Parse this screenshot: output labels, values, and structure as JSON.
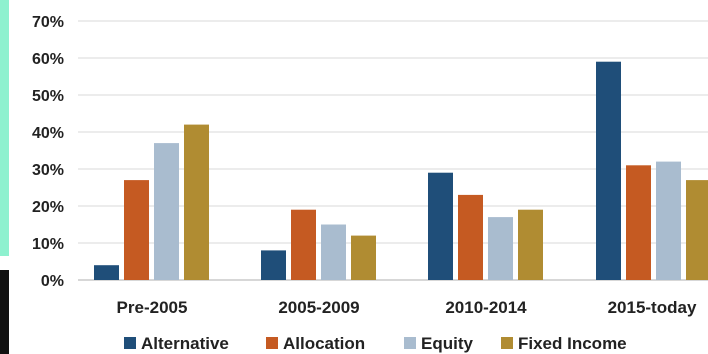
{
  "chart_data": {
    "type": "bar",
    "categories": [
      "Pre-2005",
      "2005-2009",
      "2010-2014",
      "2015-today"
    ],
    "series": [
      {
        "name": "Alternative",
        "color": "#1f4e79",
        "values": [
          4,
          8,
          29,
          59
        ]
      },
      {
        "name": "Allocation",
        "color": "#c55a22",
        "values": [
          27,
          19,
          23,
          31
        ]
      },
      {
        "name": "Equity",
        "color": "#a9bccf",
        "values": [
          37,
          15,
          17,
          32
        ]
      },
      {
        "name": "Fixed Income",
        "color": "#b08c32",
        "values": [
          42,
          12,
          19,
          27
        ]
      }
    ],
    "ylim": [
      0,
      70
    ],
    "yticks": [
      0,
      10,
      20,
      30,
      40,
      50,
      60,
      70
    ],
    "ytick_labels": [
      "0%",
      "10%",
      "20%",
      "30%",
      "40%",
      "50%",
      "60%",
      "70%"
    ],
    "y_unit": "%",
    "grid": true,
    "legend_position": "bottom",
    "title": "",
    "xlabel": "",
    "ylabel": ""
  }
}
